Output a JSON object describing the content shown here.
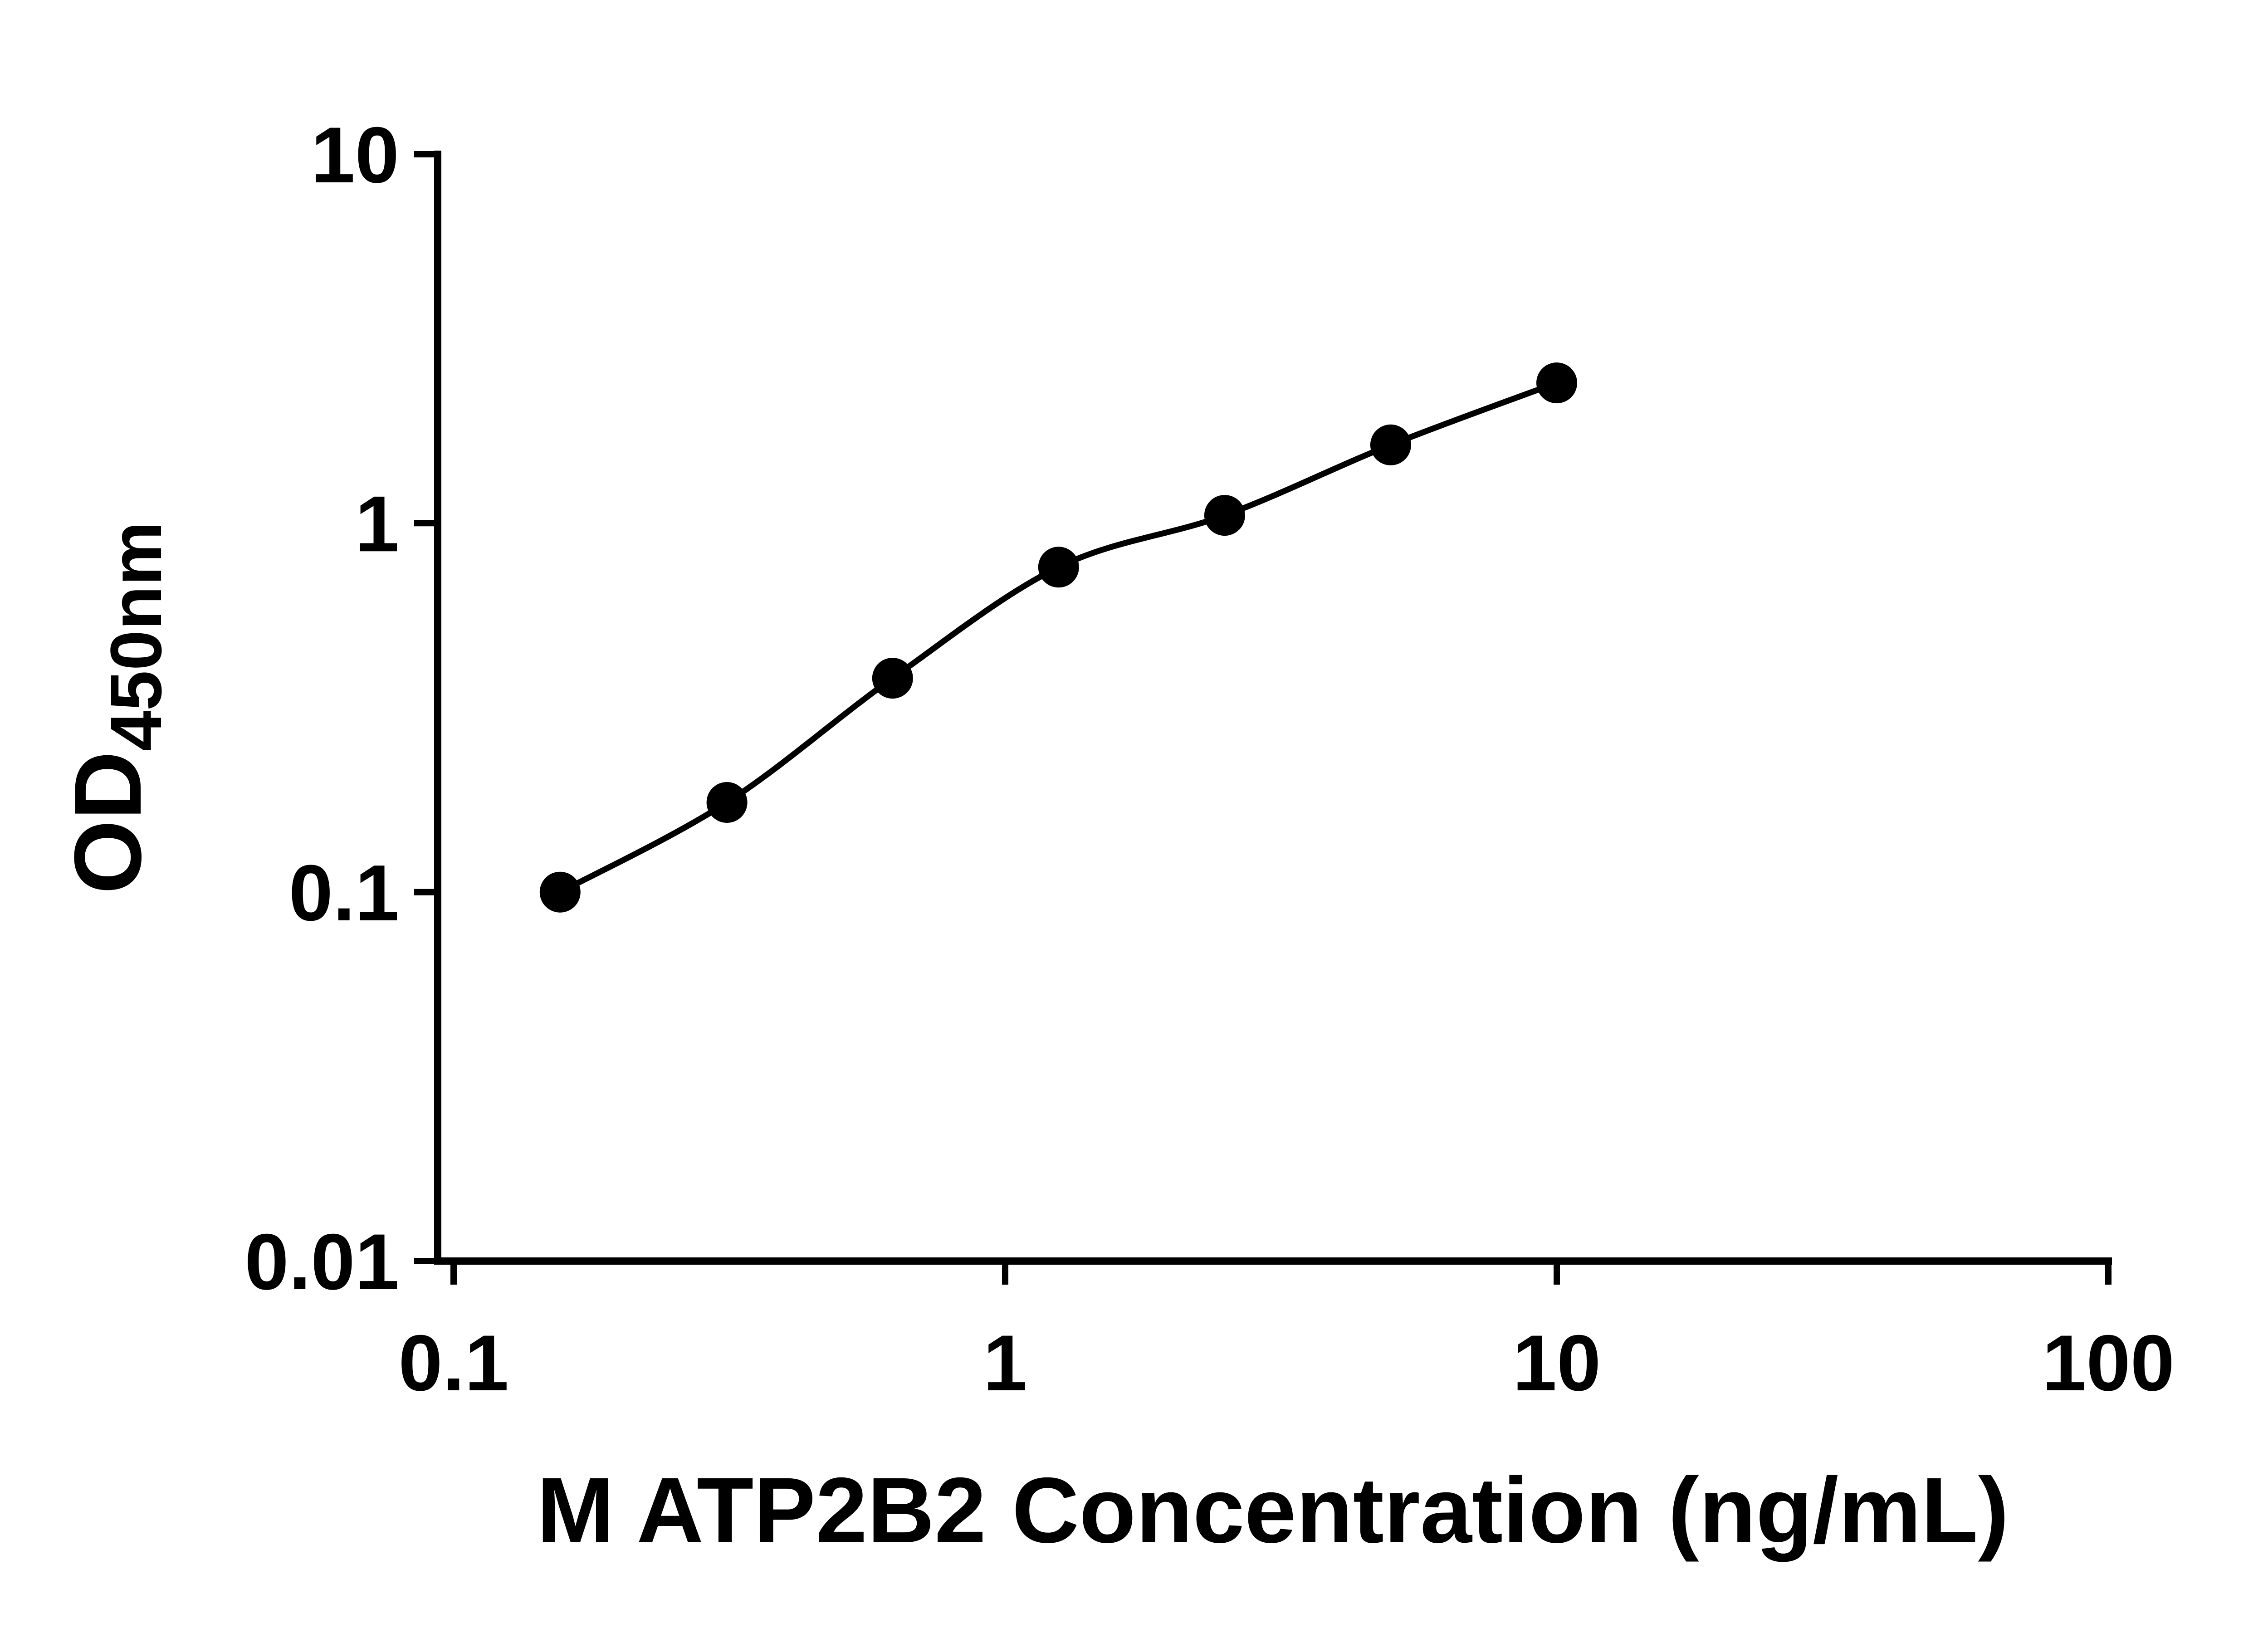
{
  "figure": {
    "background": "#ffffff"
  },
  "chart_data": {
    "type": "scatter",
    "title": "",
    "xlabel": "M ATP2B2 Concentration (ng/mL)",
    "ylabel_main": "OD",
    "ylabel_sub": "450nm",
    "x_scale": "log",
    "y_scale": "log",
    "xlim": [
      0.1,
      100
    ],
    "ylim": [
      0.01,
      10
    ],
    "grid": false,
    "legend": "none",
    "axis_color": "#000000",
    "text_color": "#000000",
    "x_ticks": [
      {
        "value": 0.1,
        "label": "0.1"
      },
      {
        "value": 1,
        "label": "1"
      },
      {
        "value": 10,
        "label": "10"
      },
      {
        "value": 100,
        "label": "100"
      }
    ],
    "y_ticks": [
      {
        "value": 0.01,
        "label": "0.01"
      },
      {
        "value": 0.1,
        "label": "0.1"
      },
      {
        "value": 1,
        "label": "1"
      },
      {
        "value": 10,
        "label": "10"
      }
    ],
    "series": [
      {
        "marker": "circle",
        "marker_color": "#000000",
        "line_color": "#000000",
        "fit": "smooth",
        "points": [
          {
            "x": 0.156,
            "y": 0.1
          },
          {
            "x": 0.313,
            "y": 0.175
          },
          {
            "x": 0.625,
            "y": 0.38
          },
          {
            "x": 1.25,
            "y": 0.76
          },
          {
            "x": 2.5,
            "y": 1.05
          },
          {
            "x": 5,
            "y": 1.63
          },
          {
            "x": 10,
            "y": 2.4
          }
        ]
      }
    ]
  }
}
